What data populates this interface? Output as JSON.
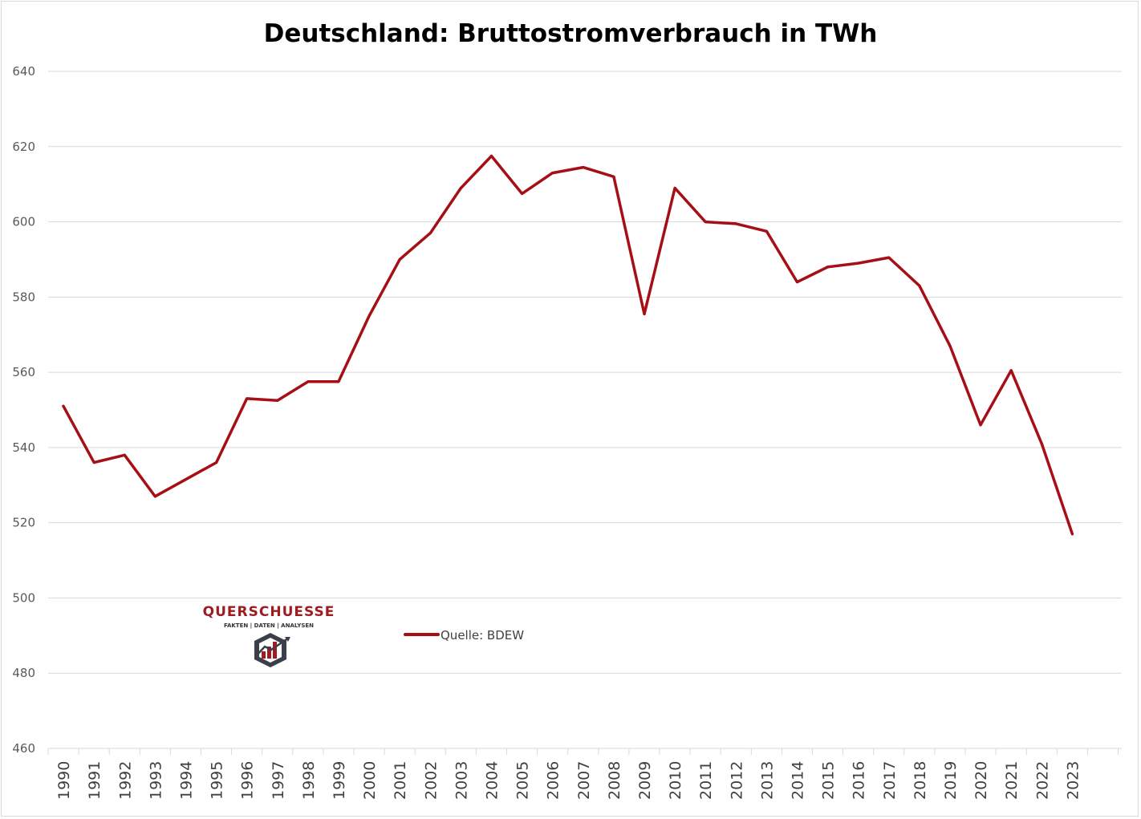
{
  "chart_data": {
    "type": "line",
    "title": "Deutschland: Bruttostromverbrauch in TWh",
    "categories": [
      "1990",
      "1991",
      "1992",
      "1993",
      "1994",
      "1995",
      "1996",
      "1997",
      "1998",
      "1999",
      "2000",
      "2001",
      "2002",
      "2003",
      "2004",
      "2005",
      "2006",
      "2007",
      "2008",
      "2009",
      "2010",
      "2011",
      "2012",
      "2013",
      "2014",
      "2015",
      "2016",
      "2017",
      "2018",
      "2019",
      "2020",
      "2021",
      "2022",
      "2023"
    ],
    "series": [
      {
        "name": "Quelle: BDEW",
        "color": "#a50f15",
        "values": [
          551,
          536,
          538,
          527,
          531.5,
          536,
          553,
          552.5,
          557.5,
          557.5,
          575,
          590,
          597,
          609,
          617.5,
          607.5,
          613,
          614.5,
          612,
          575.5,
          609,
          600,
          599.5,
          597.5,
          584,
          588,
          589,
          590.5,
          583,
          567,
          546,
          560.5,
          541,
          517
        ]
      }
    ],
    "ylim": [
      460,
      640
    ],
    "yticks": [
      "460",
      "480",
      "500",
      "520",
      "540",
      "560",
      "580",
      "600",
      "620",
      "640"
    ],
    "grid": true,
    "legend_position": "center-left inside plot, lower area"
  },
  "logo": {
    "name": "QUERSCHUESSE",
    "tagline": "FAKTEN | DATEN | ANALYSEN"
  }
}
